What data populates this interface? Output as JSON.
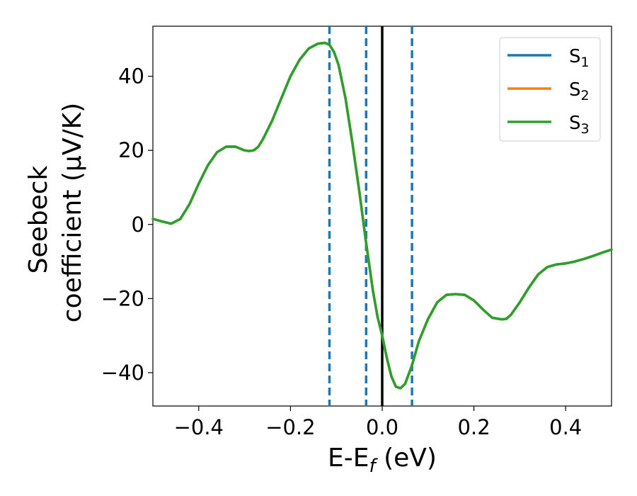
{
  "chart_data": {
    "type": "line",
    "xlabel": "E-E",
    "xlabel_sub": "f",
    "xlabel_unit": " (eV)",
    "ylabel_line1": "Seebeck",
    "ylabel_line2": "coefficient  (μV/K)",
    "xlim": [
      -0.5,
      0.5
    ],
    "ylim": [
      -49,
      53.5
    ],
    "x_ticks": [
      -0.4,
      -0.2,
      0.0,
      0.2,
      0.4
    ],
    "x_tick_labels": [
      "−0.4",
      "−0.2",
      "0.0",
      "0.2",
      "0.4"
    ],
    "y_ticks": [
      -40,
      -20,
      0,
      20,
      40
    ],
    "y_tick_labels": [
      "−40",
      "−20",
      "0",
      "20",
      "40"
    ],
    "grid": false,
    "legend_position": "top-right",
    "x": [
      -0.5,
      -0.48,
      -0.46,
      -0.44,
      -0.42,
      -0.4,
      -0.38,
      -0.36,
      -0.34,
      -0.32,
      -0.31,
      -0.3,
      -0.29,
      -0.28,
      -0.27,
      -0.26,
      -0.24,
      -0.22,
      -0.2,
      -0.18,
      -0.16,
      -0.14,
      -0.125,
      -0.115,
      -0.105,
      -0.095,
      -0.08,
      -0.065,
      -0.05,
      -0.035,
      -0.02,
      -0.01,
      0.0,
      0.01,
      0.02,
      0.03,
      0.04,
      0.05,
      0.065,
      0.08,
      0.1,
      0.12,
      0.14,
      0.16,
      0.18,
      0.2,
      0.22,
      0.24,
      0.26,
      0.27,
      0.28,
      0.3,
      0.32,
      0.34,
      0.36,
      0.38,
      0.4,
      0.42,
      0.44,
      0.46,
      0.48,
      0.5
    ],
    "series": [
      {
        "name": "S",
        "sub": "1",
        "color": "#1f77b4",
        "values": [
          1.5,
          0.8,
          0.2,
          1.5,
          5.5,
          11,
          16,
          19.5,
          21,
          21,
          20.5,
          20,
          19.8,
          20,
          21,
          23,
          28,
          34,
          40,
          44.5,
          47.5,
          48.8,
          49,
          48.5,
          46.5,
          43,
          34,
          22,
          9,
          -5,
          -18,
          -25,
          -30,
          -36,
          -41,
          -43.8,
          -44.2,
          -43,
          -38,
          -31.5,
          -25.5,
          -21,
          -19,
          -18.8,
          -19,
          -20.5,
          -23,
          -25.2,
          -25.6,
          -25.5,
          -24.5,
          -21,
          -17,
          -13.5,
          -11.5,
          -10.8,
          -10.5,
          -10,
          -9.3,
          -8.5,
          -7.6,
          -6.8
        ]
      },
      {
        "name": "S",
        "sub": "2",
        "color": "#ff7f0e",
        "values": [
          1.5,
          0.8,
          0.2,
          1.5,
          5.5,
          11,
          16,
          19.5,
          21,
          21,
          20.5,
          20,
          19.8,
          20,
          21,
          23,
          28,
          34,
          40,
          44.5,
          47.5,
          48.8,
          49,
          48.5,
          46.5,
          43,
          34,
          22,
          9,
          -5,
          -18,
          -25,
          -30,
          -36,
          -41,
          -43.8,
          -44.2,
          -43,
          -38,
          -31.5,
          -25.5,
          -21,
          -19,
          -18.8,
          -19,
          -20.5,
          -23,
          -25.2,
          -25.6,
          -25.5,
          -24.5,
          -21,
          -17,
          -13.5,
          -11.5,
          -10.8,
          -10.5,
          -10,
          -9.3,
          -8.5,
          -7.6,
          -6.8
        ]
      },
      {
        "name": "S",
        "sub": "3",
        "color": "#2ca02c",
        "values": [
          1.5,
          0.8,
          0.2,
          1.5,
          5.5,
          11,
          16,
          19.5,
          21,
          21,
          20.5,
          20,
          19.8,
          20,
          21,
          23,
          28,
          34,
          40,
          44.5,
          47.5,
          48.8,
          49,
          48.5,
          46.5,
          43,
          34,
          22,
          9,
          -5,
          -18,
          -25,
          -30,
          -36,
          -41,
          -43.8,
          -44.2,
          -43,
          -38,
          -31.5,
          -25.5,
          -21,
          -19,
          -18.8,
          -19,
          -20.5,
          -23,
          -25.2,
          -25.6,
          -25.5,
          -24.5,
          -21,
          -17,
          -13.5,
          -11.5,
          -10.8,
          -10.5,
          -10,
          -9.3,
          -8.5,
          -7.6,
          -6.8
        ]
      }
    ],
    "vlines_dashed": [
      -0.115,
      -0.035,
      0.065
    ],
    "vlines_dashed_color": "#1f77b4",
    "vline_solid": 0.0,
    "vline_solid_color": "#000000"
  }
}
